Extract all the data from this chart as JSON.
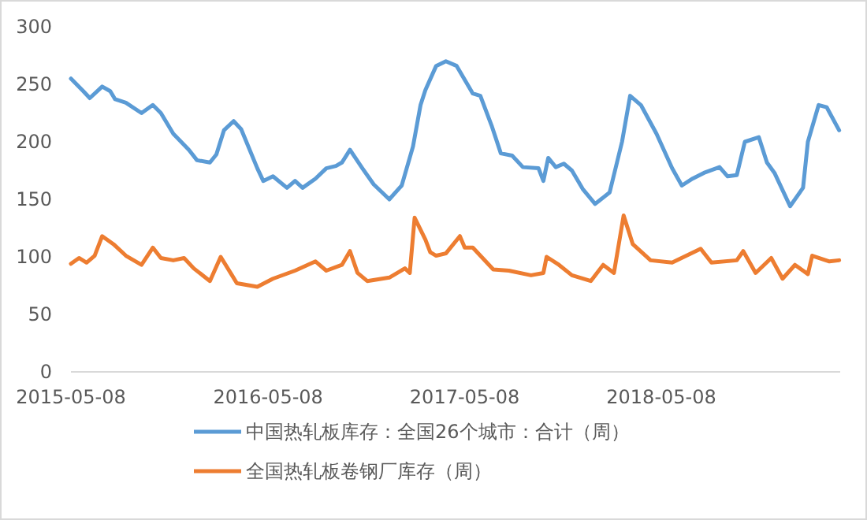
{
  "chart_data": {
    "type": "line",
    "xlim": [
      "2015-05-08",
      "2019-04-05"
    ],
    "xticks": [
      "2015-05-08",
      "2016-05-08",
      "2017-05-08",
      "2018-05-08"
    ],
    "ylim": [
      0,
      300
    ],
    "yticks": [
      0,
      50,
      100,
      150,
      200,
      250,
      300
    ],
    "legend": "bottom",
    "series": [
      {
        "name": "中国热轧板库存：全国26个城市：合计（周）",
        "color": "#5b9bd5",
        "x": [
          "2015-05-08",
          "2015-05-31",
          "2015-06-12",
          "2015-07-05",
          "2015-07-20",
          "2015-07-29",
          "2015-08-18",
          "2015-09-16",
          "2015-10-07",
          "2015-10-22",
          "2015-11-14",
          "2015-12-13",
          "2015-12-28",
          "2016-01-21",
          "2016-02-02",
          "2016-02-16",
          "2016-03-05",
          "2016-03-19",
          "2016-04-18",
          "2016-04-29",
          "2016-05-17",
          "2016-06-12",
          "2016-06-27",
          "2016-07-11",
          "2016-08-04",
          "2016-08-24",
          "2016-09-11",
          "2016-09-22",
          "2016-10-07",
          "2016-10-30",
          "2016-11-20",
          "2016-12-19",
          "2017-01-11",
          "2017-02-01",
          "2017-02-15",
          "2017-02-24",
          "2017-03-16",
          "2017-04-03",
          "2017-04-23",
          "2017-05-23",
          "2017-06-06",
          "2017-06-27",
          "2017-07-14",
          "2017-08-04",
          "2017-08-24",
          "2017-09-22",
          "2017-10-01",
          "2017-10-10",
          "2017-10-24",
          "2017-11-08",
          "2017-11-23",
          "2017-12-13",
          "2018-01-05",
          "2018-02-01",
          "2018-02-24",
          "2018-03-11",
          "2018-03-31",
          "2018-04-29",
          "2018-05-28",
          "2018-06-15",
          "2018-07-05",
          "2018-07-26",
          "2018-08-24",
          "2018-09-08",
          "2018-09-25",
          "2018-10-10",
          "2018-11-05",
          "2018-11-20",
          "2018-12-04",
          "2019-01-02",
          "2019-01-26",
          "2019-02-04",
          "2019-02-24",
          "2019-03-11",
          "2019-04-03"
        ],
        "values": [
          255,
          244,
          238,
          248,
          244,
          237,
          234,
          225,
          232,
          225,
          207,
          193,
          184,
          182,
          189,
          210,
          218,
          211,
          177,
          166,
          170,
          160,
          166,
          160,
          168,
          177,
          179,
          182,
          193,
          177,
          163,
          150,
          162,
          196,
          232,
          245,
          266,
          270,
          266,
          242,
          240,
          214,
          190,
          188,
          178,
          177,
          166,
          186,
          178,
          181,
          175,
          159,
          146,
          156,
          200,
          240,
          232,
          207,
          177,
          162,
          168,
          173,
          178,
          170,
          171,
          200,
          204,
          182,
          173,
          144,
          160,
          200,
          232,
          230,
          210
        ]
      },
      {
        "name": "全国热轧板卷钢厂库存（周）",
        "color": "#ed7d31",
        "x": [
          "2015-05-08",
          "2015-05-23",
          "2015-06-06",
          "2015-06-21",
          "2015-07-05",
          "2015-07-26",
          "2015-08-18",
          "2015-09-16",
          "2015-10-07",
          "2015-10-22",
          "2015-11-14",
          "2015-12-04",
          "2015-12-22",
          "2016-01-21",
          "2016-02-10",
          "2016-03-02",
          "2016-03-11",
          "2016-04-18",
          "2016-05-17",
          "2016-06-27",
          "2016-08-04",
          "2016-08-24",
          "2016-09-22",
          "2016-10-07",
          "2016-10-21",
          "2016-11-08",
          "2016-12-19",
          "2017-01-17",
          "2017-01-26",
          "2017-02-04",
          "2017-02-24",
          "2017-03-05",
          "2017-03-16",
          "2017-04-03",
          "2017-04-29",
          "2017-05-08",
          "2017-05-23",
          "2017-06-30",
          "2017-07-29",
          "2017-09-08",
          "2017-10-01",
          "2017-10-07",
          "2017-10-30",
          "2017-11-23",
          "2017-12-28",
          "2018-01-20",
          "2018-02-09",
          "2018-02-27",
          "2018-03-16",
          "2018-04-18",
          "2018-05-28",
          "2018-07-20",
          "2018-08-09",
          "2018-09-25",
          "2018-10-07",
          "2018-10-30",
          "2018-11-28",
          "2018-12-19",
          "2019-01-11",
          "2019-02-04",
          "2019-02-12",
          "2019-03-16",
          "2019-04-03"
        ],
        "values": [
          94,
          99,
          95,
          101,
          118,
          111,
          101,
          93,
          108,
          99,
          97,
          99,
          90,
          79,
          100,
          84,
          77,
          74,
          81,
          88,
          96,
          88,
          93,
          105,
          86,
          79,
          82,
          90,
          86,
          134,
          115,
          104,
          101,
          103,
          118,
          108,
          108,
          89,
          88,
          84,
          86,
          100,
          93,
          84,
          79,
          93,
          86,
          136,
          111,
          97,
          95,
          107,
          95,
          97,
          105,
          86,
          99,
          81,
          93,
          85,
          101,
          96,
          97
        ]
      }
    ]
  }
}
